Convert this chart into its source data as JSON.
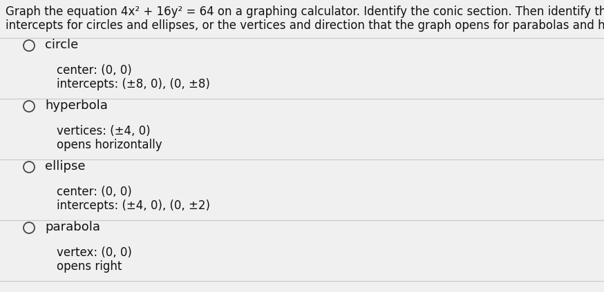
{
  "background_color": "#f0f0f0",
  "prompt_line1": "Graph the equation 4x² + 16y² = 64 on a graphing calculator. Identify the conic section. Then identify the center and",
  "prompt_line2": "intercepts for circles and ellipses, or the vertices and direction that the graph opens for parabolas and hyperbolas.",
  "options": [
    {
      "label": "circle",
      "details": [
        "center: (0, 0)",
        "intercepts: (±8, 0), (0, ±8)"
      ]
    },
    {
      "label": "hyperbola",
      "details": [
        "vertices: (±4, 0)",
        "opens horizontally"
      ]
    },
    {
      "label": "ellipse",
      "details": [
        "center: (0, 0)",
        "intercepts: (±4, 0), (0, ±2)"
      ]
    },
    {
      "label": "parabola",
      "details": [
        "vertex: (0, 0)",
        "opens right"
      ]
    }
  ],
  "prompt_fontsize": 12.0,
  "label_fontsize": 13.0,
  "detail_fontsize": 12.0,
  "text_color": "#111111",
  "divider_color": "#c8c8c8",
  "radio_color": "#444444",
  "fig_width": 8.74,
  "fig_height": 4.23,
  "dpi": 100
}
